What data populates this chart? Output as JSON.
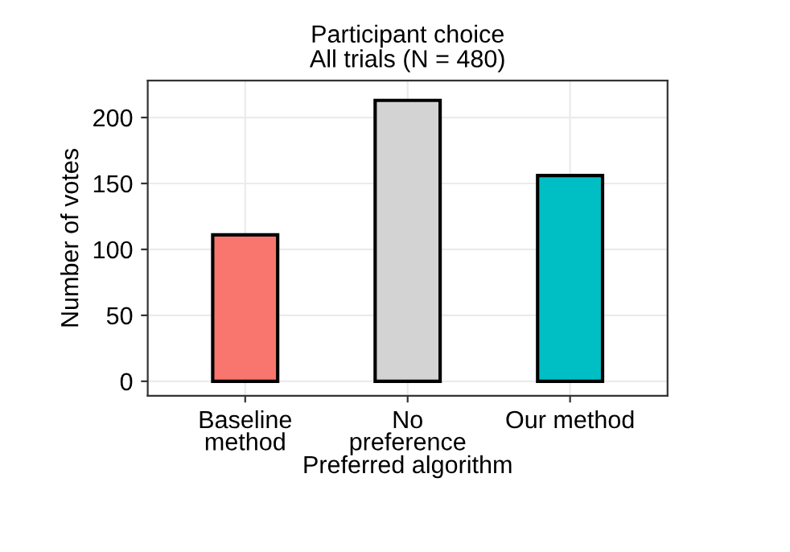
{
  "chart_data": {
    "type": "bar",
    "title": "Participant choice\nAll trials (N = 480)",
    "xlabel": "Preferred algorithm",
    "ylabel": "Number of votes",
    "categories": [
      "Baseline\nmethod",
      "No\npreference",
      "Our method"
    ],
    "values": [
      111,
      213,
      156
    ],
    "colors": [
      "#f8766d",
      "#d3d3d3",
      "#00bfc4"
    ],
    "ylim": [
      -11,
      228
    ],
    "yticks": [
      0,
      50,
      100,
      150,
      200
    ],
    "grid": true,
    "legend": false
  }
}
